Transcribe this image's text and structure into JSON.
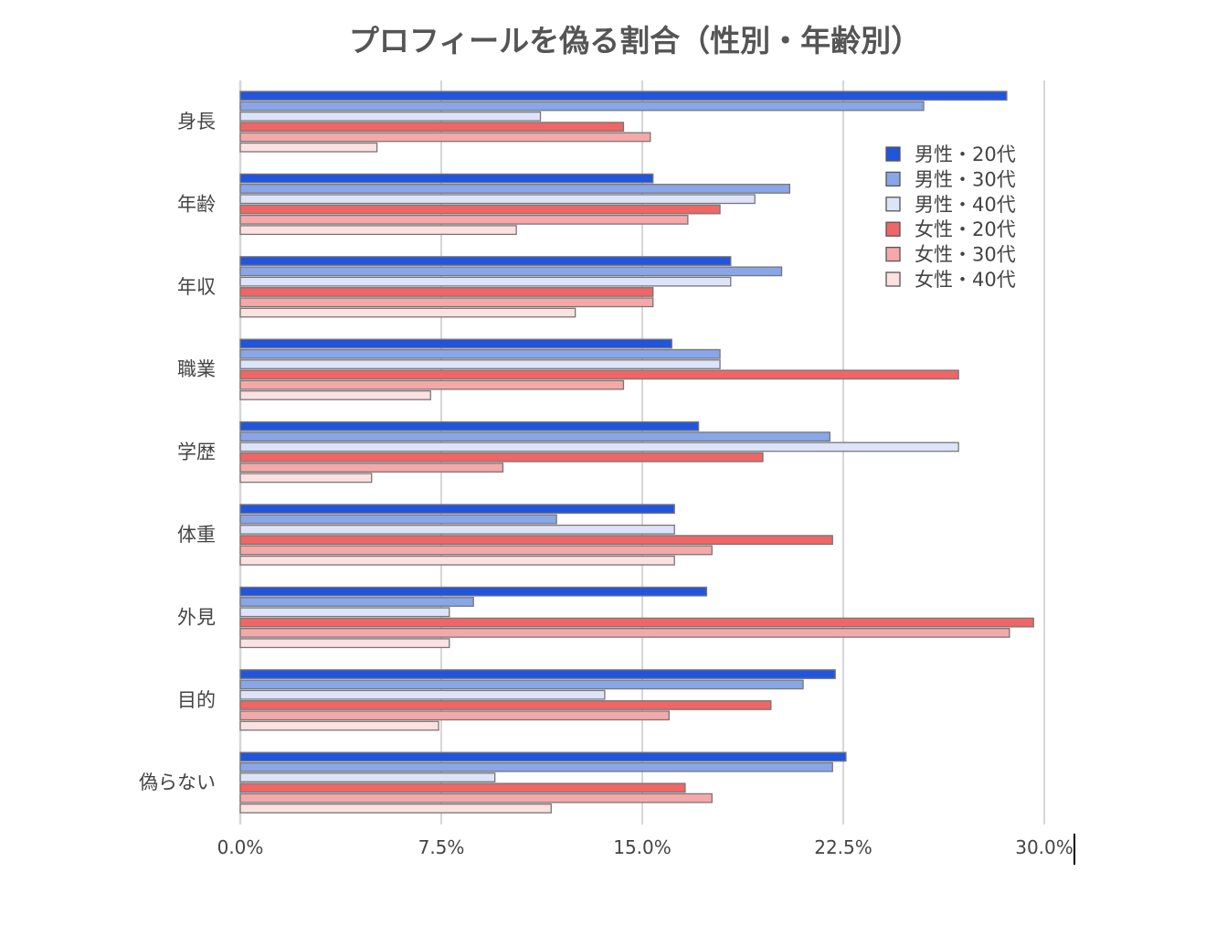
{
  "chart_data": {
    "type": "bar",
    "orientation": "horizontal",
    "title": "プロフィールを偽る割合（性別・年齢別）",
    "xlabel": "",
    "ylabel": "",
    "xlim": [
      0,
      30
    ],
    "x_ticks": [
      "0.0%",
      "7.5%",
      "15.0%",
      "22.5%",
      "30.0%"
    ],
    "x_tick_values": [
      0,
      7.5,
      15,
      22.5,
      30
    ],
    "grid": true,
    "legend_position": "top-right",
    "categories": [
      "身長",
      "年齢",
      "年収",
      "職業",
      "学歴",
      "体重",
      "外見",
      "目的",
      "偽らない"
    ],
    "series": [
      {
        "name": "男性・20代",
        "color": "#2255dd",
        "values": [
          28.6,
          15.4,
          18.3,
          16.1,
          17.1,
          16.2,
          17.4,
          22.2,
          22.6
        ]
      },
      {
        "name": "男性・30代",
        "color": "#88a6e8",
        "values": [
          25.5,
          20.5,
          20.2,
          17.9,
          22.0,
          11.8,
          8.7,
          21.0,
          22.1
        ]
      },
      {
        "name": "男性・40代",
        "color": "#dde3f8",
        "values": [
          11.2,
          19.2,
          18.3,
          17.9,
          26.8,
          16.2,
          7.8,
          13.6,
          9.5
        ]
      },
      {
        "name": "女性・20代",
        "color": "#f06565",
        "values": [
          14.3,
          17.9,
          15.4,
          26.8,
          19.5,
          22.1,
          29.6,
          19.8,
          16.6
        ]
      },
      {
        "name": "女性・30代",
        "color": "#f5a8a8",
        "values": [
          15.3,
          16.7,
          15.4,
          14.3,
          9.8,
          17.6,
          28.7,
          16.0,
          17.6
        ]
      },
      {
        "name": "女性・40代",
        "color": "#fde0e0",
        "values": [
          5.1,
          10.3,
          12.5,
          7.1,
          4.9,
          16.2,
          7.8,
          7.4,
          11.6
        ]
      }
    ]
  }
}
